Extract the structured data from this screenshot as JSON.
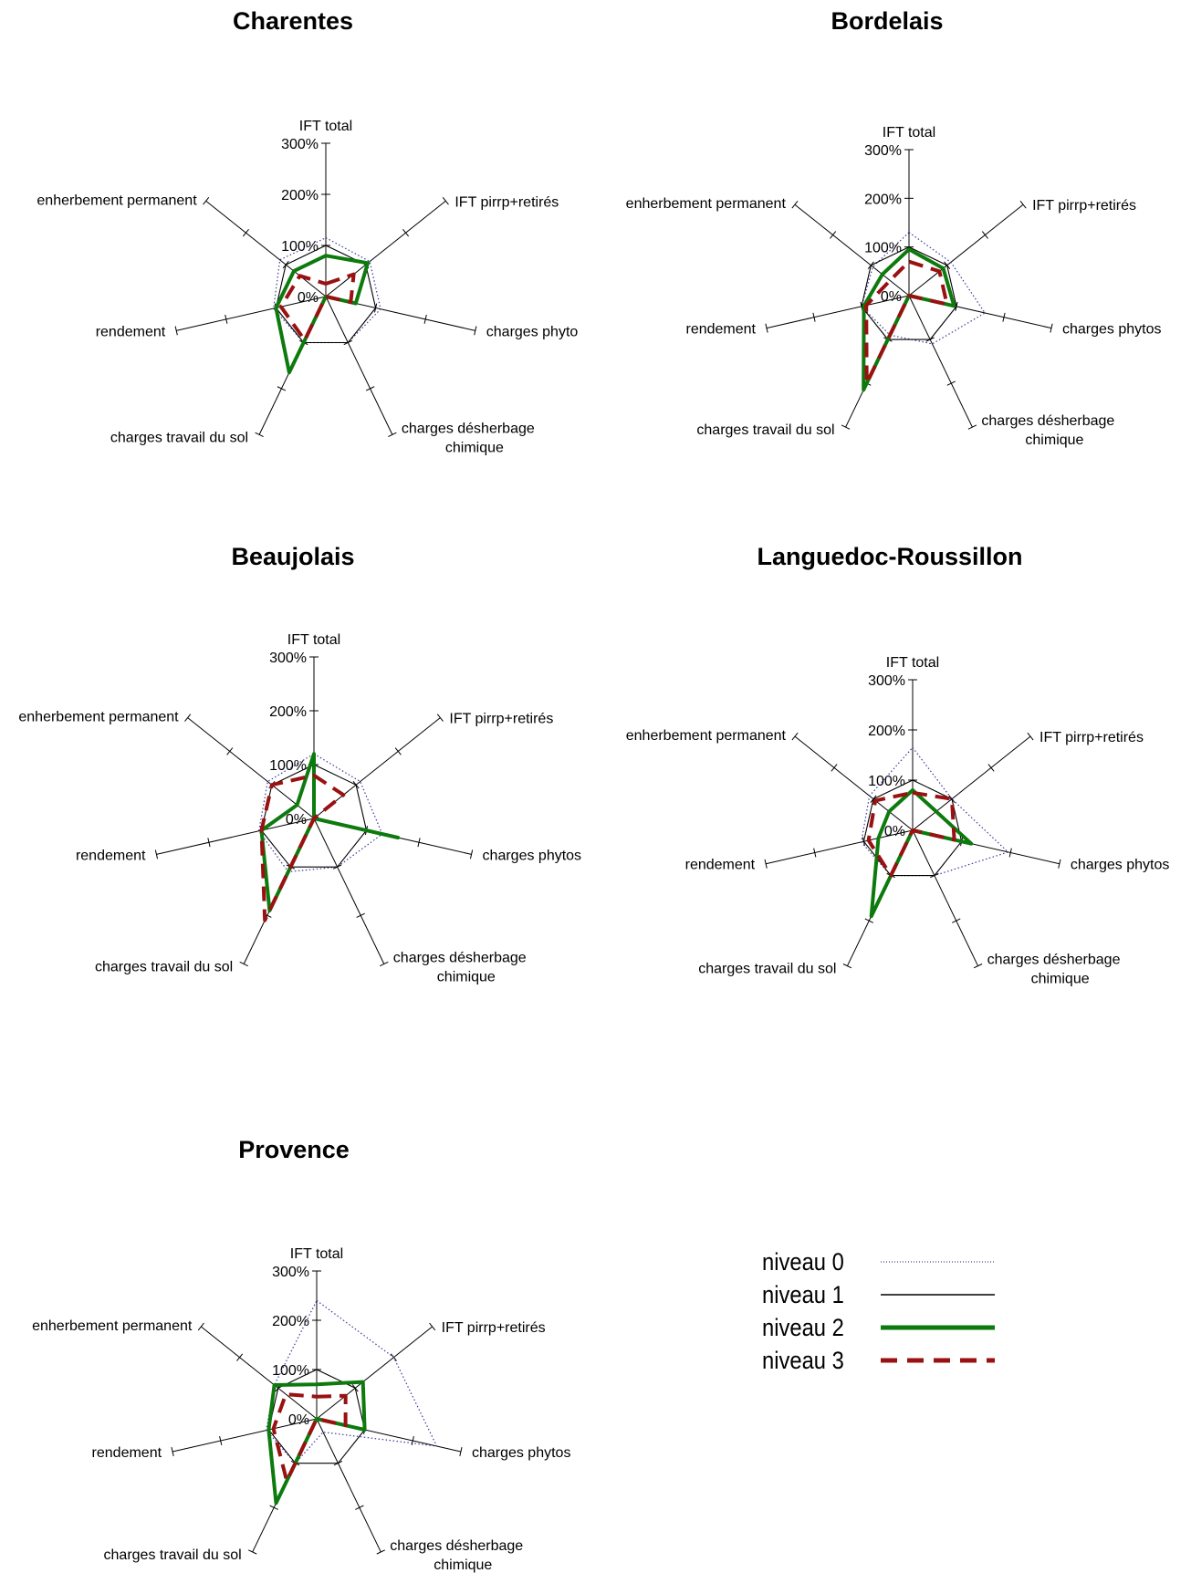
{
  "chart_data": [
    {
      "type": "radar",
      "title": "Charentes",
      "axes": [
        "IFT total",
        "IFT pirrp+retirés",
        "charges phyto",
        "charges désherbage chimique",
        "charges travail du sol",
        "rendement",
        "enherbement permanent"
      ],
      "axis_label_lines": [
        [
          "IFT total"
        ],
        [
          "IFT pirrp+retirés"
        ],
        [
          "charges phyto"
        ],
        [
          "charges désherbage",
          "chimique"
        ],
        [
          "charges travail du sol"
        ],
        [
          "rendement"
        ],
        [
          "enherbement permanent"
        ]
      ],
      "ring_labels": [
        "0%",
        "100%",
        "200%",
        "300%"
      ],
      "rmax": 300,
      "series": [
        {
          "name": "niveau 0",
          "values": [
            115,
            110,
            110,
            100,
            100,
            105,
            115
          ]
        },
        {
          "name": "niveau 1",
          "values": [
            100,
            100,
            100,
            100,
            100,
            100,
            100
          ]
        },
        {
          "name": "niveau 2",
          "values": [
            80,
            105,
            60,
            0,
            165,
            100,
            80
          ]
        },
        {
          "name": "niveau 3",
          "values": [
            25,
            70,
            50,
            0,
            95,
            90,
            65
          ]
        }
      ]
    },
    {
      "type": "radar",
      "title": "Bordelais",
      "axes": [
        "IFT total",
        "IFT pirrp+retirés",
        "charges phytos",
        "charges désherbage chimique",
        "charges travail du sol",
        "rendement",
        "enherbement permanent"
      ],
      "axis_label_lines": [
        [
          "IFT total"
        ],
        [
          "IFT pirrp+retirés"
        ],
        [
          "charges phytos"
        ],
        [
          "charges désherbage",
          "chimique"
        ],
        [
          "charges travail du sol"
        ],
        [
          "rendement"
        ],
        [
          "enherbement permanent"
        ]
      ],
      "ring_labels": [
        "0%",
        "100%",
        "200%",
        "300%"
      ],
      "rmax": 300,
      "series": [
        {
          "name": "niveau 0",
          "values": [
            130,
            110,
            160,
            110,
            90,
            100,
            95
          ]
        },
        {
          "name": "niveau 1",
          "values": [
            100,
            100,
            100,
            100,
            100,
            100,
            100
          ]
        },
        {
          "name": "niveau 2",
          "values": [
            95,
            90,
            95,
            0,
            215,
            95,
            70
          ]
        },
        {
          "name": "niveau 3",
          "values": [
            70,
            80,
            80,
            0,
            200,
            90,
            50
          ]
        }
      ]
    },
    {
      "type": "radar",
      "title": "Beaujolais",
      "axes": [
        "IFT total",
        "IFT pirrp+retirés",
        "charges phytos",
        "charges désherbage chimique",
        "charges travail du sol",
        "rendement",
        "enherbement permanent"
      ],
      "axis_label_lines": [
        [
          "IFT total"
        ],
        [
          "IFT pirrp+retirés"
        ],
        [
          "charges phytos"
        ],
        [
          "charges désherbage",
          "chimique"
        ],
        [
          "charges travail du sol"
        ],
        [
          "rendement"
        ],
        [
          "enherbement permanent"
        ]
      ],
      "ring_labels": [
        "0%",
        "100%",
        "200%",
        "300%"
      ],
      "rmax": 300,
      "series": [
        {
          "name": "niveau 0",
          "values": [
            120,
            110,
            130,
            100,
            110,
            105,
            110
          ]
        },
        {
          "name": "niveau 1",
          "values": [
            100,
            100,
            100,
            100,
            100,
            100,
            100
          ]
        },
        {
          "name": "niveau 2",
          "values": [
            120,
            0,
            160,
            0,
            190,
            100,
            40
          ]
        },
        {
          "name": "niveau 3",
          "values": [
            80,
            70,
            0,
            0,
            210,
            100,
            100
          ]
        }
      ]
    },
    {
      "type": "radar",
      "title": "Languedoc-Roussillon",
      "axes": [
        "IFT total",
        "IFT pirrp+retirés",
        "charges phytos",
        "charges désherbage chimique",
        "charges travail du sol",
        "rendement",
        "enherbement permanent"
      ],
      "axis_label_lines": [
        [
          "IFT total"
        ],
        [
          "IFT pirrp+retirés"
        ],
        [
          "charges phytos"
        ],
        [
          "charges désherbage",
          "chimique"
        ],
        [
          "charges travail du sol"
        ],
        [
          "rendement"
        ],
        [
          "enherbement permanent"
        ]
      ],
      "ring_labels": [
        "0%",
        "100%",
        "200%",
        "300%"
      ],
      "rmax": 300,
      "series": [
        {
          "name": "niveau 0",
          "values": [
            165,
            100,
            195,
            100,
            100,
            105,
            110
          ]
        },
        {
          "name": "niveau 1",
          "values": [
            100,
            100,
            100,
            100,
            100,
            100,
            100
          ]
        },
        {
          "name": "niveau 2",
          "values": [
            80,
            60,
            120,
            0,
            190,
            70,
            60
          ]
        },
        {
          "name": "niveau 3",
          "values": [
            75,
            100,
            85,
            0,
            100,
            90,
            95
          ]
        }
      ]
    },
    {
      "type": "radar",
      "title": "Provence",
      "axes": [
        "IFT total",
        "IFT pirrp+retirés",
        "charges phytos",
        "charges désherbage chimique",
        "charges travail du sol",
        "rendement",
        "enherbement permanent"
      ],
      "axis_label_lines": [
        [
          "IFT total"
        ],
        [
          "IFT pirrp+retirés"
        ],
        [
          "charges phytos"
        ],
        [
          "charges désherbage",
          "chimique"
        ],
        [
          "charges travail du sol"
        ],
        [
          "rendement"
        ],
        [
          "enherbement permanent"
        ]
      ],
      "ring_labels": [
        "0%",
        "100%",
        "200%",
        "300%"
      ],
      "rmax": 300,
      "series": [
        {
          "name": "niveau 0",
          "values": [
            240,
            200,
            250,
            30,
            100,
            105,
            110
          ]
        },
        {
          "name": "niveau 1",
          "values": [
            100,
            100,
            100,
            100,
            100,
            100,
            100
          ]
        },
        {
          "name": "niveau 2",
          "values": [
            70,
            120,
            100,
            0,
            190,
            100,
            110
          ]
        },
        {
          "name": "niveau 3",
          "values": [
            45,
            75,
            60,
            0,
            140,
            90,
            80
          ]
        }
      ]
    }
  ],
  "legend": {
    "items": [
      {
        "label": "niveau 0",
        "color": "#222266",
        "style": "dotted"
      },
      {
        "label": "niveau 1",
        "color": "#000000",
        "style": "solid"
      },
      {
        "label": "niveau 2",
        "color": "#0d7a0d",
        "style": "thick"
      },
      {
        "label": "niveau 3",
        "color": "#991111",
        "style": "dashed"
      }
    ]
  }
}
